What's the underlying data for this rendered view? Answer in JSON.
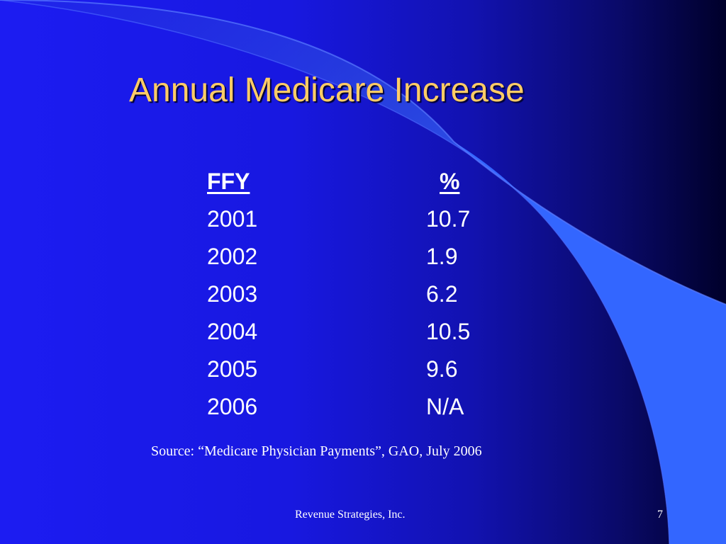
{
  "slide": {
    "title": "Annual Medicare Increase",
    "table": {
      "headers": [
        "FFY",
        "%"
      ],
      "rows": [
        [
          "2001",
          "10.7"
        ],
        [
          "2002",
          "1.9"
        ],
        [
          "2003",
          "6.2"
        ],
        [
          "2004",
          "10.5"
        ],
        [
          "2005",
          "9.6"
        ],
        [
          "2006",
          "N/A"
        ]
      ]
    },
    "source": "Source: “Medicare Physician Payments”, GAO, July 2006",
    "footer": {
      "company": "Revenue Strategies, Inc.",
      "page_number": "7"
    }
  },
  "colors": {
    "background": "#1818e0",
    "title": "#ffcc66",
    "text": "#ffffff",
    "accent_swoosh": "#3366ff"
  }
}
